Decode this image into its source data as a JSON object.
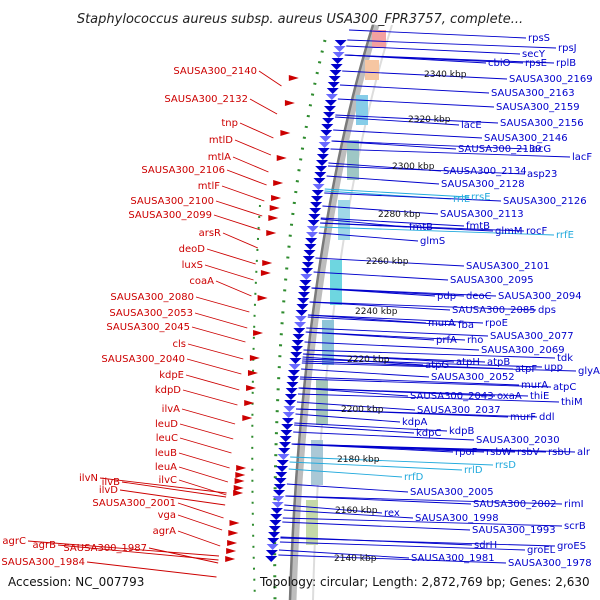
{
  "title": "Staphylococcus aureus subsp. aureus USA300_FPR3757, complete...",
  "accession_text": "Accession: NC_007793",
  "summary_text": "Topology: circular; Length: 2,872,769 bp; Genes: 2,630",
  "colors": {
    "forward": "#0000cc",
    "reverse": "#cc0000",
    "rna": "#22aadd",
    "backbone": "#8a8a8a",
    "dots": "#2e8b2e"
  },
  "ticks": [
    "2340 kbp",
    "2320 kbp",
    "2300 kbp",
    "2280 kbp",
    "2260 kbp",
    "2240 kbp",
    "2220 kbp",
    "2200 kbp",
    "2180 kbp",
    "2160 kbp",
    "2140 kbp"
  ],
  "left_labels": [
    "SAUSA300_2140",
    "SAUSA300_2132",
    "tnp",
    "mtlD",
    "mtlA",
    "SAUSA300_2106",
    "mtlF",
    "SAUSA300_2100",
    "SAUSA300_2099",
    "arsR",
    "deoD",
    "luxS",
    "coaA",
    "SAUSA300_2080",
    "SAUSA300_2053",
    "SAUSA300_2045",
    "cls",
    "SAUSA300_2040",
    "kdpE",
    "kdpD",
    "ilvA",
    "leuD",
    "leuC",
    "leuB",
    "leuA",
    "ilvC",
    "ilvN",
    "ilvB",
    "ilvD",
    "SAUSA300_2001",
    "vga",
    "agrA",
    "agrC",
    "agrB",
    "SAUSA300_1987",
    "SAUSA300_1984"
  ],
  "right_labels": [
    "rpsS",
    "rpsJ",
    "secY",
    "cbiO",
    "rpsE",
    "rplB",
    "SAUSA300_2169",
    "SAUSA300_2163",
    "SAUSA300_2159",
    "SAUSA300_2156",
    "lacE",
    "SAUSA300_2146",
    "SAUSA300_2139",
    "lacG",
    "lacF",
    "asp23",
    "SAUSA300_2134",
    "SAUSA300_2128",
    "rrlE",
    "rrsE",
    "SAUSA300_2126",
    "SAUSA300_2113",
    "fmtB",
    "fmtB",
    "glmM",
    "rocF",
    "rrfE",
    "glmS",
    "SAUSA300_2101",
    "SAUSA300_2095",
    "pdp",
    "deoC",
    "SAUSA300_2094",
    "SAUSA300_2085",
    "dps",
    "murA",
    "fba",
    "rpoE",
    "prfA",
    "rho",
    "SAUSA300_2077",
    "SAUSA300_2069",
    "tdk",
    "atpG",
    "atpH",
    "atpB",
    "atpF",
    "upp",
    "glyA",
    "SAUSA300_2052",
    "murA",
    "atpC",
    "SAUSA300_2043",
    "oxaA",
    "thiE",
    "thiM",
    "SAUSA300_2037",
    "murF",
    "ddl",
    "kdpA",
    "kdpC",
    "kdpB",
    "SAUSA300_2030",
    "rpoF",
    "rsbW",
    "rsbV",
    "rsbU",
    "alr",
    "rrlD",
    "rrsD",
    "rrfD",
    "SAUSA300_2005",
    "SAUSA300_2002",
    "rimI",
    "rex",
    "SAUSA300_1998",
    "scrB",
    "SAUSA300_1993",
    "sdrH",
    "groEL",
    "groES",
    "SAUSA300_1981",
    "SAUSA300_1978"
  ]
}
